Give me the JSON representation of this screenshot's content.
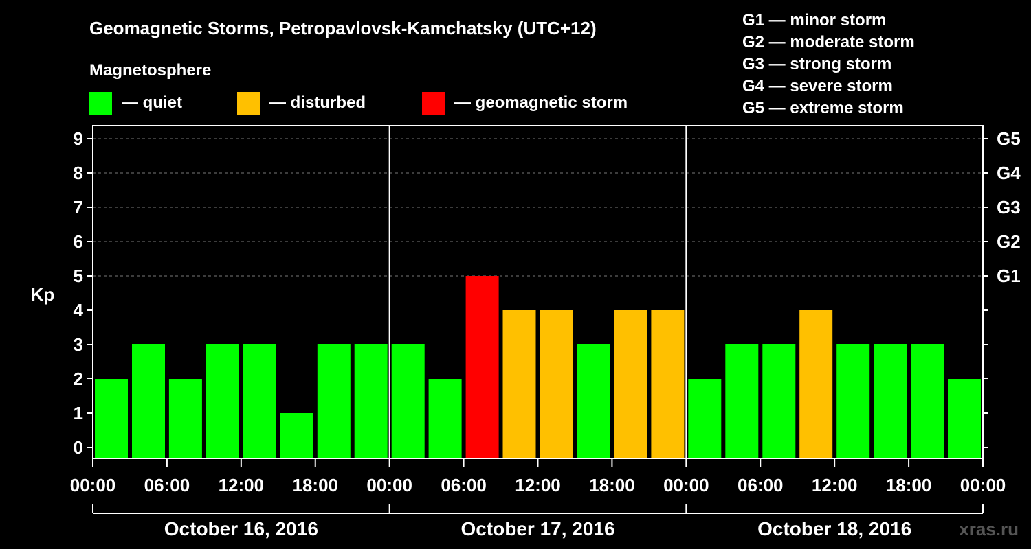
{
  "chart_data": {
    "type": "bar",
    "title": "Geomagnetic Storms, Petropavlovsk-Kamchatsky (UTC+12)",
    "legend": {
      "heading": "Magnetosphere",
      "entries": [
        {
          "label": "— quiet",
          "color": "#00ff00"
        },
        {
          "label": "— disturbed",
          "color": "#ffc000"
        },
        {
          "label": "— geomagnetic storm",
          "color": "#ff0000"
        }
      ]
    },
    "scale_legend": [
      "G1 — minor storm",
      "G2 — moderate storm",
      "G3 — strong storm",
      "G4 — severe storm",
      "G5 — extreme storm"
    ],
    "ylabel": "Kp",
    "ylim": [
      0,
      9
    ],
    "y_ticks": [
      "0",
      "1",
      "2",
      "3",
      "4",
      "5",
      "6",
      "7",
      "8",
      "9"
    ],
    "g_ticks": [
      {
        "kp": 5,
        "label": "G1"
      },
      {
        "kp": 6,
        "label": "G2"
      },
      {
        "kp": 7,
        "label": "G3"
      },
      {
        "kp": 8,
        "label": "G4"
      },
      {
        "kp": 9,
        "label": "G5"
      }
    ],
    "x_ticks": [
      "00:00",
      "06:00",
      "12:00",
      "18:00",
      "00:00",
      "06:00",
      "12:00",
      "18:00",
      "00:00",
      "06:00",
      "12:00",
      "18:00",
      "00:00"
    ],
    "days": [
      "October 16, 2016",
      "October 17, 2016",
      "October 18, 2016"
    ],
    "interval_hours": 3,
    "values": [
      2,
      3,
      2,
      3,
      3,
      1,
      3,
      3,
      3,
      2,
      5,
      4,
      4,
      3,
      4,
      4,
      2,
      3,
      3,
      4,
      3,
      3,
      3,
      2
    ],
    "colors": {
      "quiet": "#00ff00",
      "disturbed": "#ffc000",
      "storm": "#ff0000"
    },
    "grid": "dashed at G levels"
  },
  "watermark": "xras.ru"
}
